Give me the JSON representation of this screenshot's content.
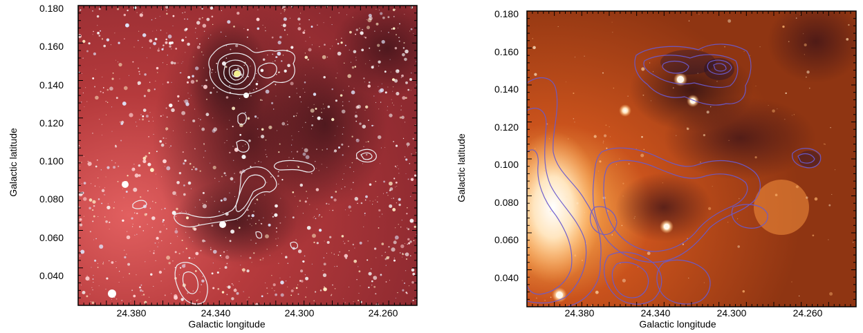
{
  "panels": [
    {
      "ylabel": "Galactic latitude",
      "xlabel": "Galactic longitude",
      "yticks": [
        "0.180",
        "0.160",
        "0.140",
        "0.120",
        "0.100",
        "0.080",
        "0.060",
        "0.040"
      ],
      "xticks": [
        "24.380",
        "24.340",
        "24.300",
        "24.260"
      ],
      "colors": {
        "background": "#b8393a",
        "contour": "#e8e8f0"
      }
    },
    {
      "ylabel": "Galactic latitude",
      "xlabel": "Galactic longitude",
      "yticks": [
        "0.180",
        "0.160",
        "0.140",
        "0.120",
        "0.100",
        "0.080",
        "0.060",
        "0.040"
      ],
      "xticks": [
        "24.380",
        "24.340",
        "24.300",
        "24.260"
      ],
      "colors": {
        "background": "#c2501c",
        "contour": "#6a5acd"
      }
    }
  ]
}
